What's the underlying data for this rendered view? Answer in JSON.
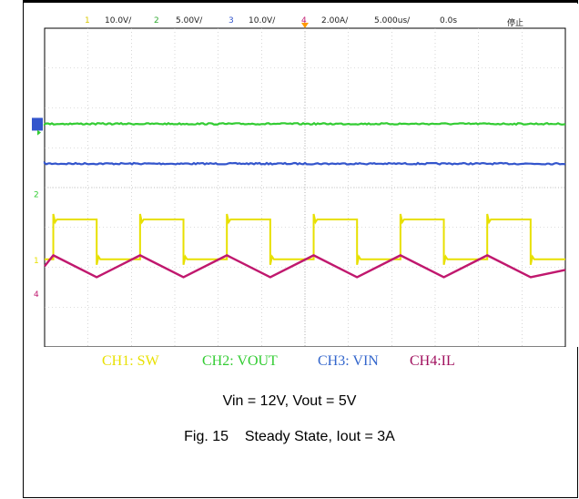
{
  "header": {
    "ch1_num": "1",
    "ch1_scale": "10.0V/",
    "ch2_num": "2",
    "ch2_scale": "5.00V/",
    "ch3_num": "3",
    "ch3_scale": "10.0V/",
    "ch4_num": "4",
    "ch4_scale": "2.00A/",
    "timebase": "5.000us/",
    "delay": "0.0s",
    "run_state": "停止"
  },
  "colors": {
    "ch1": "#e8e000",
    "ch2": "#33cc33",
    "ch3": "#3355cc",
    "ch4": "#c0186e",
    "grid": "#bbbbbb",
    "trigger": "#ff9900"
  },
  "markers": {
    "ch1": "1",
    "ch2": "2",
    "ch4": "4"
  },
  "legend": {
    "ch1": "CH1: SW",
    "ch2": "CH2: VOUT",
    "ch3": "CH3: VIN",
    "ch4": "CH4:IL"
  },
  "caption": {
    "line1": "Vin = 12V, Vout = 5V",
    "line2": "Fig. 15    Steady State, Iout = 3A"
  },
  "chart_data": {
    "type": "line",
    "time_per_div_us": 5,
    "divisions_x": 12,
    "divisions_y": 8,
    "series": [
      {
        "name": "CH1: SW",
        "kind": "square",
        "period_us": 10,
        "duty": 0.5,
        "high_div": 3.2,
        "low_div": 2.2,
        "offset_us": 1.0
      },
      {
        "name": "CH3: VIN",
        "kind": "flat",
        "level_div": 4.6
      },
      {
        "name": "CH2: VOUT",
        "kind": "flat",
        "level_div": 5.6
      },
      {
        "name": "CH4:IL",
        "kind": "triangle",
        "period_us": 10,
        "peak_div": 2.3,
        "valley_div": 1.75,
        "offset_us": 1.0
      }
    ]
  }
}
